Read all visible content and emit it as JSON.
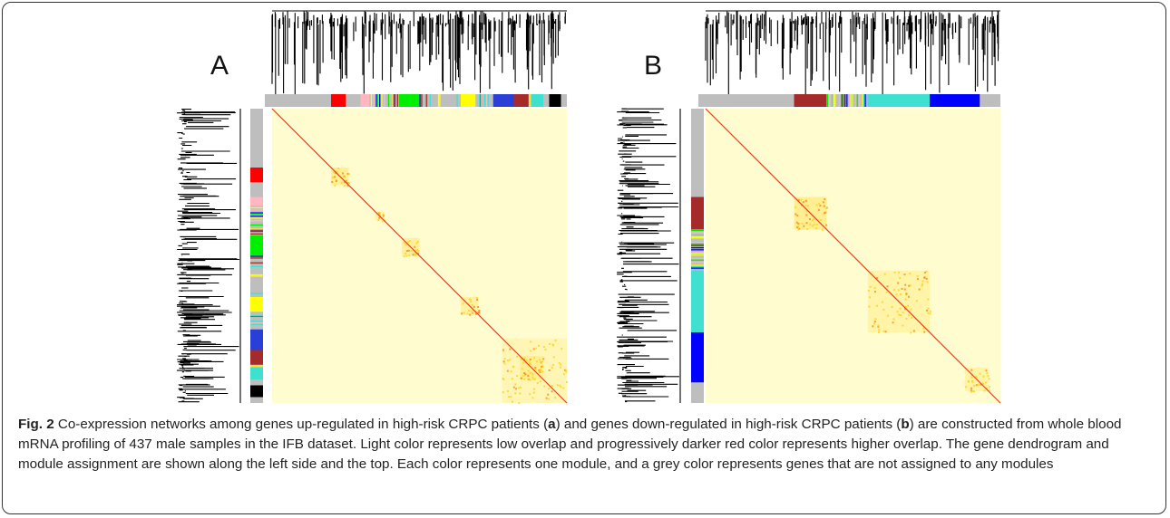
{
  "figure": {
    "panels": [
      {
        "label": "A"
      },
      {
        "label": "B"
      }
    ],
    "caption": {
      "segments": [
        {
          "text": "Fig. 2",
          "bold": true
        },
        {
          "text": " Co-expression networks among genes up-regulated in high-risk CRPC patients (",
          "bold": false
        },
        {
          "text": "a",
          "bold": true
        },
        {
          "text": ") and genes down-regulated in high-risk CRPC patients (",
          "bold": false
        },
        {
          "text": "b",
          "bold": true
        },
        {
          "text": ") are constructed from whole blood mRNA profiling of 437 male samples in the IFB dataset. Light color represents low overlap and progressively darker red color represents higher overlap. The gene dendrogram and module assignment are shown along the left side and the top. Each color represents one module, and a grey color represents genes that are not assigned to any modules",
          "bold": false
        }
      ]
    }
  }
}
